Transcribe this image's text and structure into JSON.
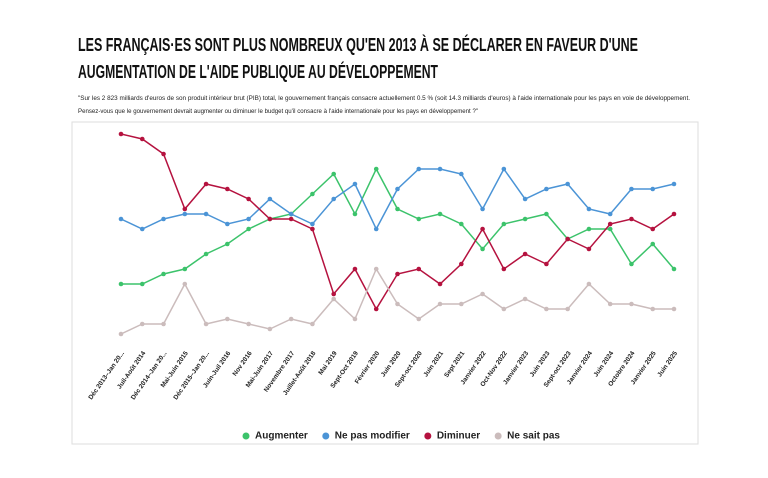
{
  "chart_data": {
    "type": "line",
    "title": [
      "LES FRANÇAIS·ES SONT PLUS NOMBREUX QU'EN 2013 À SE DÉCLARER EN FAVEUR D'UNE",
      "AUGMENTATION DE L'AIDE PUBLIQUE AU DÉVELOPPEMENT"
    ],
    "subtitle": [
      "\"Sur les 2 823 milliards d'euros de son produit intérieur brut (PIB) total, le gouvernement français consacre actuellement 0.5 % (soit 14.3 milliards d'euros) à l'aide internationale pour les pays en voie de développement.",
      "Pensez-vous que le gouvernement devrait augmenter ou diminuer le budget qu'il consacre à l'aide internationale pour les pays en développement ?\""
    ],
    "categories": [
      "Déc 2013–Jan 20...",
      "Juil-Août 2014",
      "Déc 2014–Jan 20...",
      "Mai-Juin 2015",
      "Déc 2015–Jan 20...",
      "Juin-Juil 2016",
      "Nov 2016",
      "Mai-Juin 2017",
      "Novembre 2017",
      "Juillet-Août 2018",
      "Mai 2019",
      "Sept-Oct 2019",
      "Février 2020",
      "Juin 2020",
      "Sept-oct 2020",
      "Juin 2021",
      "Sept 2021",
      "Janvier 2022",
      "Oct-Nov 2022",
      "Janvier 2023",
      "Juin 2023",
      "Sept-oct 2023",
      "Janvier 2024",
      "Juin 2024",
      "Octobre 2024",
      "Janvier 2025",
      "Juin 2025"
    ],
    "series": [
      {
        "name": "Augmenter",
        "color": "#3cc36b",
        "values": [
          17,
          17,
          19,
          20,
          23,
          25,
          28,
          30,
          31,
          35,
          39,
          31,
          40,
          32,
          30,
          31,
          29,
          24,
          29,
          30,
          31,
          26,
          28,
          28,
          21,
          25,
          20
        ]
      },
      {
        "name": "Ne pas modifier",
        "color": "#4b94d6",
        "values": [
          30,
          28,
          30,
          31,
          31,
          29,
          30,
          34,
          31,
          29,
          34,
          37,
          28,
          36,
          40,
          40,
          39,
          32,
          40,
          34,
          36,
          37,
          32,
          31,
          36,
          36,
          37
        ]
      },
      {
        "name": "Diminuer",
        "color": "#b5123f",
        "values": [
          47,
          46,
          43,
          32,
          37,
          36,
          34,
          30,
          30,
          28,
          15,
          20,
          12,
          19,
          20,
          17,
          21,
          28,
          20,
          23,
          21,
          26,
          24,
          29,
          30,
          28,
          31
        ]
      },
      {
        "name": "Ne sait pas",
        "color": "#cbbcbc",
        "values": [
          7,
          9,
          9,
          17,
          9,
          10,
          9,
          8,
          10,
          9,
          14,
          10,
          20,
          13,
          10,
          13,
          13,
          15,
          12,
          14,
          12,
          12,
          17,
          13,
          13,
          12,
          12
        ]
      }
    ],
    "ylim": [
      5,
      50
    ]
  }
}
